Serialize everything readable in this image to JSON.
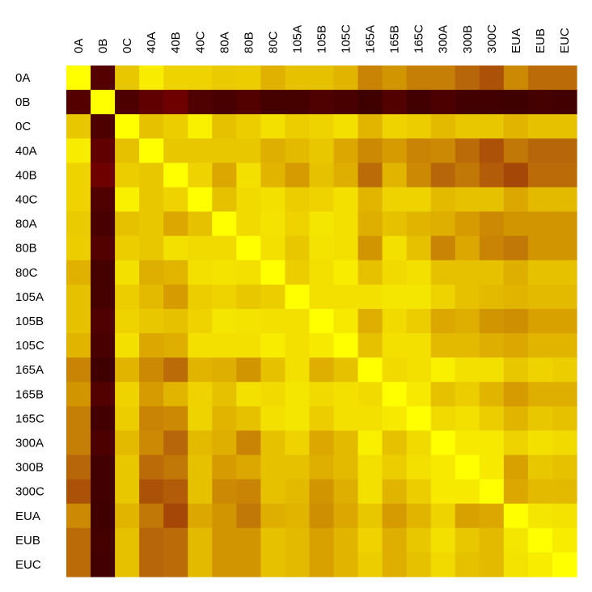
{
  "chart_data": {
    "type": "heatmap",
    "title": "",
    "xlabel": "",
    "ylabel": "",
    "labels": [
      "0A",
      "0B",
      "0C",
      "40A",
      "40B",
      "40C",
      "80A",
      "80B",
      "80C",
      "105A",
      "105B",
      "105C",
      "165A",
      "165B",
      "165C",
      "300A",
      "300B",
      "300C",
      "EUA",
      "EUB",
      "EUC"
    ],
    "value_range": [
      0,
      1
    ],
    "color_scale": [
      "#3c0000",
      "#7a0000",
      "#b8660a",
      "#d9a100",
      "#f3e000",
      "#ffff00"
    ],
    "matrix": [
      [
        1.0,
        0.08,
        0.72,
        0.88,
        0.76,
        0.76,
        0.73,
        0.74,
        0.65,
        0.7,
        0.7,
        0.66,
        0.5,
        0.56,
        0.48,
        0.48,
        0.4,
        0.36,
        0.52,
        0.42,
        0.42
      ],
      [
        0.08,
        1.0,
        0.05,
        0.12,
        0.16,
        0.06,
        0.04,
        0.07,
        0.03,
        0.03,
        0.06,
        0.04,
        0.01,
        0.07,
        0.02,
        0.05,
        0.02,
        0.02,
        0.01,
        0.03,
        0.02
      ],
      [
        0.72,
        0.05,
        1.0,
        0.7,
        0.74,
        0.9,
        0.7,
        0.74,
        0.8,
        0.74,
        0.76,
        0.8,
        0.66,
        0.76,
        0.74,
        0.68,
        0.72,
        0.72,
        0.66,
        0.7,
        0.7
      ],
      [
        0.88,
        0.12,
        0.7,
        1.0,
        0.72,
        0.72,
        0.72,
        0.72,
        0.64,
        0.68,
        0.72,
        0.62,
        0.52,
        0.58,
        0.5,
        0.52,
        0.42,
        0.36,
        0.46,
        0.4,
        0.4
      ],
      [
        0.76,
        0.16,
        0.74,
        0.72,
        1.0,
        0.76,
        0.62,
        0.8,
        0.66,
        0.58,
        0.7,
        0.64,
        0.42,
        0.66,
        0.52,
        0.4,
        0.46,
        0.38,
        0.34,
        0.42,
        0.42
      ],
      [
        0.76,
        0.06,
        0.9,
        0.72,
        0.76,
        1.0,
        0.7,
        0.78,
        0.8,
        0.74,
        0.76,
        0.8,
        0.66,
        0.76,
        0.76,
        0.68,
        0.7,
        0.7,
        0.62,
        0.68,
        0.68
      ],
      [
        0.73,
        0.04,
        0.7,
        0.72,
        0.62,
        0.7,
        1.0,
        0.78,
        0.82,
        0.76,
        0.84,
        0.8,
        0.64,
        0.7,
        0.66,
        0.64,
        0.58,
        0.52,
        0.56,
        0.56,
        0.56
      ],
      [
        0.74,
        0.07,
        0.74,
        0.72,
        0.8,
        0.78,
        0.78,
        1.0,
        0.8,
        0.72,
        0.82,
        0.8,
        0.56,
        0.8,
        0.7,
        0.5,
        0.62,
        0.5,
        0.46,
        0.56,
        0.56
      ],
      [
        0.65,
        0.03,
        0.8,
        0.64,
        0.66,
        0.8,
        0.82,
        0.8,
        1.0,
        0.74,
        0.8,
        0.88,
        0.7,
        0.78,
        0.8,
        0.7,
        0.7,
        0.7,
        0.64,
        0.7,
        0.7
      ],
      [
        0.7,
        0.03,
        0.74,
        0.68,
        0.58,
        0.74,
        0.76,
        0.72,
        0.74,
        1.0,
        0.8,
        0.8,
        0.8,
        0.84,
        0.84,
        0.76,
        0.7,
        0.68,
        0.66,
        0.68,
        0.68
      ],
      [
        0.7,
        0.06,
        0.76,
        0.72,
        0.7,
        0.76,
        0.84,
        0.82,
        0.8,
        0.8,
        1.0,
        0.86,
        0.64,
        0.78,
        0.74,
        0.62,
        0.64,
        0.56,
        0.54,
        0.6,
        0.6
      ],
      [
        0.66,
        0.04,
        0.8,
        0.62,
        0.64,
        0.8,
        0.8,
        0.8,
        0.88,
        0.8,
        0.86,
        1.0,
        0.7,
        0.8,
        0.8,
        0.68,
        0.68,
        0.64,
        0.62,
        0.66,
        0.66
      ],
      [
        0.5,
        0.01,
        0.66,
        0.52,
        0.42,
        0.66,
        0.64,
        0.56,
        0.7,
        0.8,
        0.64,
        0.7,
        1.0,
        0.78,
        0.8,
        0.9,
        0.8,
        0.8,
        0.72,
        0.76,
        0.74
      ],
      [
        0.56,
        0.07,
        0.76,
        0.58,
        0.66,
        0.76,
        0.7,
        0.8,
        0.78,
        0.84,
        0.78,
        0.8,
        0.78,
        1.0,
        0.86,
        0.7,
        0.74,
        0.66,
        0.58,
        0.64,
        0.64
      ],
      [
        0.48,
        0.02,
        0.74,
        0.5,
        0.52,
        0.76,
        0.66,
        0.7,
        0.8,
        0.84,
        0.74,
        0.8,
        0.8,
        0.86,
        1.0,
        0.78,
        0.8,
        0.74,
        0.66,
        0.72,
        0.7
      ],
      [
        0.48,
        0.05,
        0.68,
        0.52,
        0.4,
        0.68,
        0.64,
        0.5,
        0.7,
        0.76,
        0.62,
        0.68,
        0.9,
        0.7,
        0.78,
        1.0,
        0.86,
        0.86,
        0.76,
        0.8,
        0.78
      ],
      [
        0.4,
        0.02,
        0.72,
        0.42,
        0.46,
        0.7,
        0.58,
        0.62,
        0.7,
        0.7,
        0.64,
        0.68,
        0.8,
        0.74,
        0.8,
        0.86,
        1.0,
        0.86,
        0.6,
        0.72,
        0.7
      ],
      [
        0.36,
        0.02,
        0.72,
        0.36,
        0.38,
        0.7,
        0.52,
        0.5,
        0.7,
        0.68,
        0.56,
        0.64,
        0.8,
        0.66,
        0.74,
        0.86,
        0.86,
        1.0,
        0.62,
        0.68,
        0.68
      ],
      [
        0.52,
        0.01,
        0.66,
        0.46,
        0.34,
        0.62,
        0.56,
        0.46,
        0.64,
        0.66,
        0.54,
        0.62,
        0.72,
        0.58,
        0.66,
        0.76,
        0.6,
        0.62,
        1.0,
        0.84,
        0.82
      ],
      [
        0.42,
        0.03,
        0.7,
        0.4,
        0.42,
        0.68,
        0.56,
        0.56,
        0.7,
        0.68,
        0.6,
        0.66,
        0.76,
        0.64,
        0.72,
        0.8,
        0.72,
        0.68,
        0.84,
        1.0,
        0.88
      ],
      [
        0.42,
        0.02,
        0.7,
        0.4,
        0.42,
        0.68,
        0.56,
        0.56,
        0.7,
        0.68,
        0.6,
        0.66,
        0.74,
        0.64,
        0.7,
        0.78,
        0.7,
        0.68,
        0.82,
        0.88,
        1.0
      ]
    ],
    "grid": false,
    "legend": "none"
  }
}
